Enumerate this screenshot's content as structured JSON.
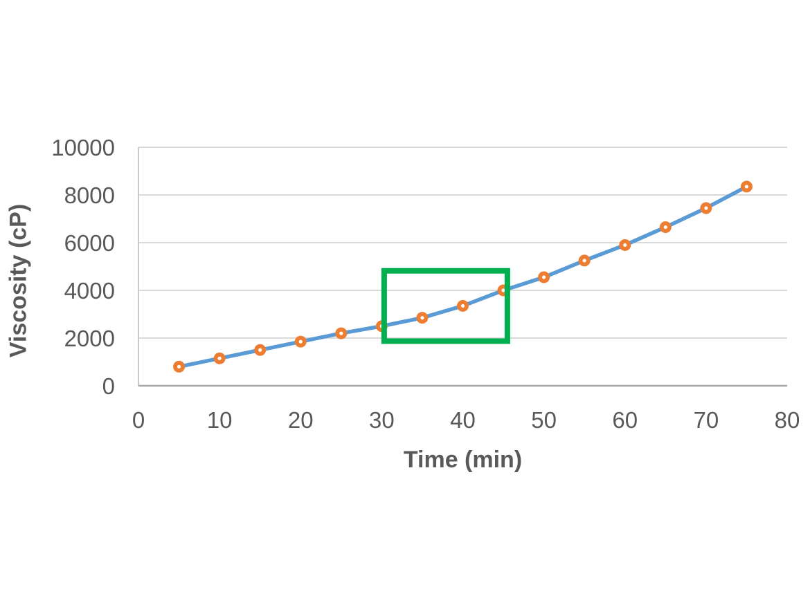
{
  "chart_data": {
    "type": "line",
    "title": "",
    "xlabel": "Time (min)",
    "ylabel": "Viscosity (cP)",
    "x": [
      5,
      10,
      15,
      20,
      25,
      30,
      35,
      40,
      45,
      50,
      55,
      60,
      65,
      70,
      75
    ],
    "series": [
      {
        "name": "viscosity",
        "values": [
          800,
          1150,
          1500,
          1850,
          2200,
          2500,
          2850,
          3350,
          4000,
          4550,
          5250,
          5900,
          6650,
          7450,
          8350
        ]
      }
    ],
    "xlim": [
      0,
      80
    ],
    "ylim": [
      0,
      10000
    ],
    "x_ticks": [
      0,
      10,
      20,
      30,
      40,
      50,
      60,
      70,
      80
    ],
    "y_ticks": [
      0,
      2000,
      4000,
      6000,
      8000,
      10000
    ],
    "grid": "horizontal",
    "legend_position": "none",
    "annotations": [
      {
        "type": "rect",
        "name": "highlight-box",
        "x_range": [
          30.3,
          45.5
        ],
        "y_range": [
          1870,
          4820
        ],
        "color": "#00B050",
        "stroke_width": 8
      }
    ],
    "marker": {
      "shape": "circle-with-white-center",
      "radius": 8.5,
      "center_radius": 2.6
    },
    "colors": {
      "line": "#5B9BD5",
      "marker": "#ED7D31",
      "marker_center": "#FFFFFF",
      "gridline": "#D9D9D9",
      "axis_line": "#A6A6A6",
      "left_axis_line": "#C9C9C9",
      "tick_label": "#595959",
      "axis_title": "#595959",
      "background": "#FFFFFF"
    }
  }
}
